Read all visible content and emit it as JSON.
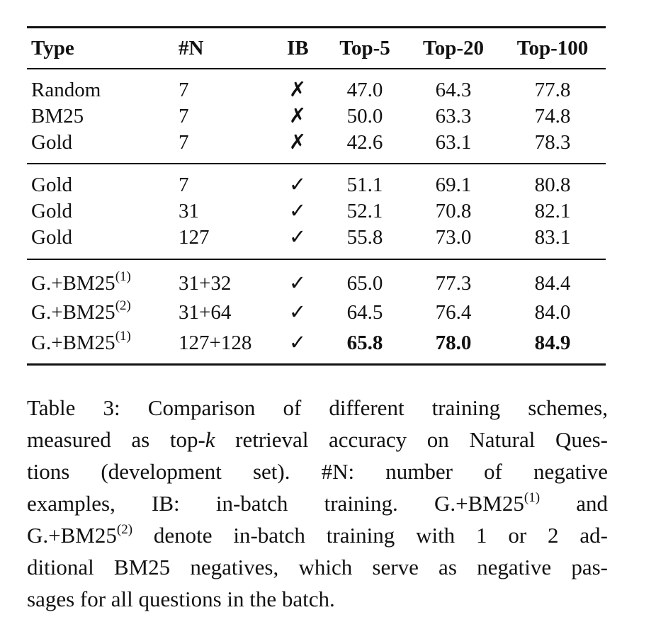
{
  "table": {
    "headers": [
      "Type",
      "#N",
      "IB",
      "Top-5",
      "Top-20",
      "Top-100"
    ],
    "groups": [
      [
        {
          "type": "Random",
          "sup": "",
          "n": "7",
          "ib": "✗",
          "top5": "47.0",
          "top20": "64.3",
          "top100": "77.8"
        },
        {
          "type": "BM25",
          "sup": "",
          "n": "7",
          "ib": "✗",
          "top5": "50.0",
          "top20": "63.3",
          "top100": "74.8"
        },
        {
          "type": "Gold",
          "sup": "",
          "n": "7",
          "ib": "✗",
          "top5": "42.6",
          "top20": "63.1",
          "top100": "78.3"
        }
      ],
      [
        {
          "type": "Gold",
          "sup": "",
          "n": "7",
          "ib": "✓",
          "top5": "51.1",
          "top20": "69.1",
          "top100": "80.8"
        },
        {
          "type": "Gold",
          "sup": "",
          "n": "31",
          "ib": "✓",
          "top5": "52.1",
          "top20": "70.8",
          "top100": "82.1"
        },
        {
          "type": "Gold",
          "sup": "",
          "n": "127",
          "ib": "✓",
          "top5": "55.8",
          "top20": "73.0",
          "top100": "83.1"
        }
      ],
      [
        {
          "type": "G.+BM25",
          "sup": "(1)",
          "n": "31+32",
          "ib": "✓",
          "top5": "65.0",
          "top20": "77.3",
          "top100": "84.4"
        },
        {
          "type": "G.+BM25",
          "sup": "(2)",
          "n": "31+64",
          "ib": "✓",
          "top5": "64.5",
          "top20": "76.4",
          "top100": "84.0"
        },
        {
          "type": "G.+BM25",
          "sup": "(1)",
          "n": "127+128",
          "ib": "✓",
          "top5": "65.8",
          "top20": "78.0",
          "top100": "84.9",
          "bold": true
        }
      ]
    ]
  },
  "caption": {
    "lines": [
      [
        "Table 3:  Comparison of different training schemes,"
      ],
      [
        "measured as top-",
        {
          "i": "k"
        },
        " retrieval accuracy on Natural Ques-"
      ],
      [
        "tions (development set).   #N: number of negative"
      ],
      [
        "examples, IB: in-batch training.   G.+BM25",
        {
          "sup": "(1)"
        },
        " and"
      ],
      [
        "G.+BM25",
        {
          "sup": "(2)"
        },
        " denote in-batch training with 1 or 2 ad-"
      ],
      [
        "ditional BM25 negatives, which serve as negative pas-"
      ],
      [
        "sages for all questions in the batch."
      ]
    ]
  }
}
